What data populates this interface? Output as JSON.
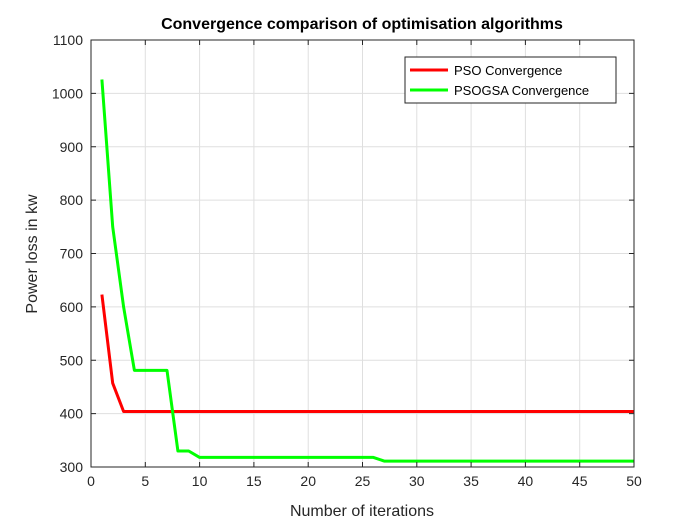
{
  "chart_data": {
    "type": "line",
    "title": "Convergence comparison of optimisation algorithms",
    "xlabel": "Number of iterations",
    "ylabel": "Power loss in kw",
    "xlim": [
      0,
      50
    ],
    "ylim": [
      300,
      1100
    ],
    "xticks": [
      0,
      5,
      10,
      15,
      20,
      25,
      30,
      35,
      40,
      45,
      50
    ],
    "yticks": [
      300,
      400,
      500,
      600,
      700,
      800,
      900,
      1000,
      1100
    ],
    "grid": true,
    "legend_position": "top-right",
    "series": [
      {
        "name": "PSO Convergence",
        "color": "#ff0000",
        "x": [
          1,
          2,
          3,
          4,
          5,
          6,
          7,
          8,
          9,
          10,
          15,
          20,
          25,
          30,
          35,
          40,
          45,
          50
        ],
        "y": [
          623,
          457,
          404,
          404,
          404,
          404,
          404,
          404,
          404,
          404,
          404,
          404,
          404,
          404,
          404,
          404,
          404,
          404
        ]
      },
      {
        "name": "PSOGSA Convergence",
        "color": "#00ff00",
        "x": [
          1,
          2,
          3,
          4,
          5,
          6,
          7,
          8,
          9,
          10,
          15,
          20,
          25,
          26,
          27,
          30,
          35,
          40,
          45,
          50
        ],
        "y": [
          1026,
          750,
          600,
          481,
          481,
          481,
          481,
          330,
          330,
          318,
          318,
          318,
          318,
          318,
          311,
          311,
          311,
          311,
          311,
          311
        ]
      }
    ]
  }
}
